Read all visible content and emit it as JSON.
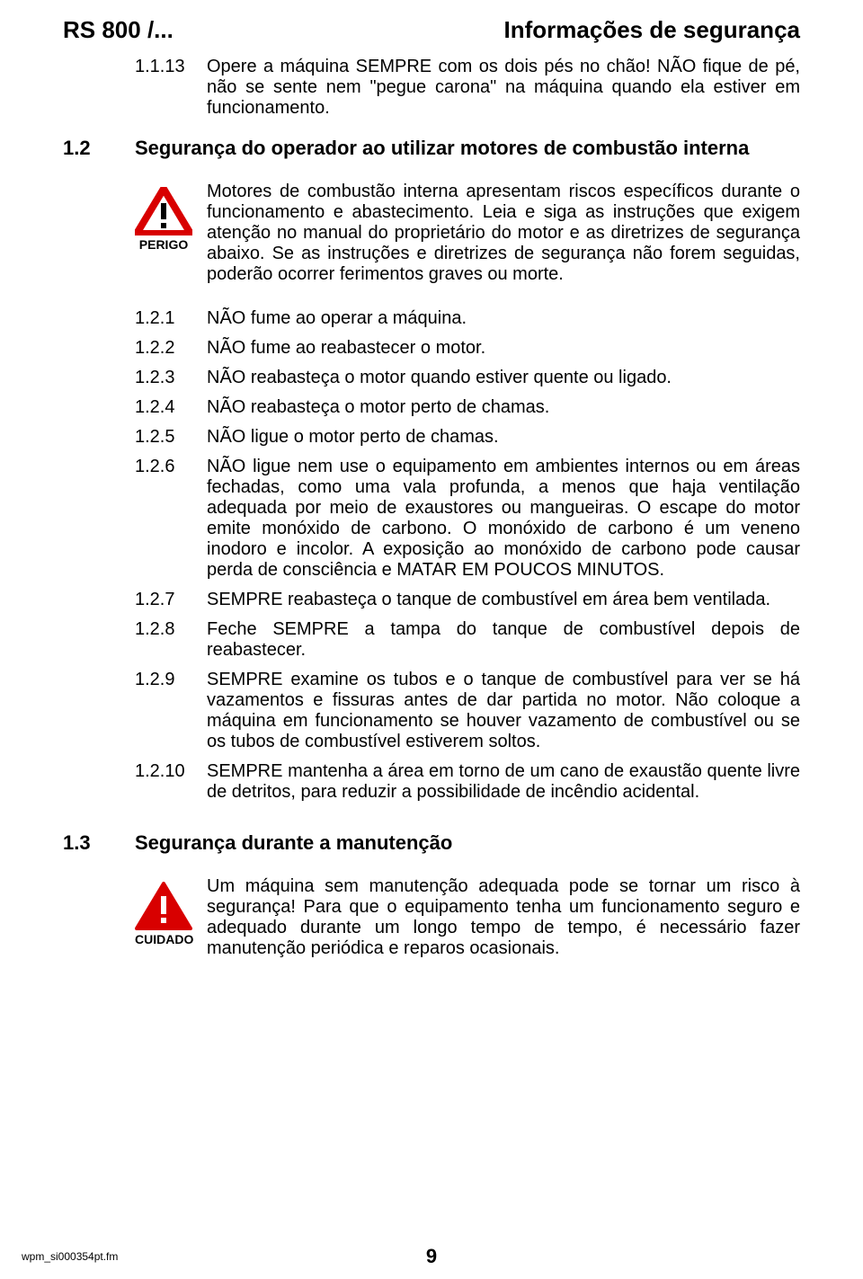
{
  "header": {
    "left": "RS 800 /...",
    "right": "Informações de segurança"
  },
  "intro_item": {
    "num": "1.1.13",
    "text": "Opere a máquina SEMPRE com os dois pés no chão! NÃO fique de pé, não se sente nem \"pegue carona\" na máquina quando ela estiver em funcionamento."
  },
  "section12": {
    "num": "1.2",
    "title": "Segurança do operador ao utilizar motores de combustão interna"
  },
  "warning12": {
    "label": "PERIGO",
    "text": "Motores de combustão interna apresentam riscos específicos durante o funcionamento e abastecimento. Leia e siga as instruções que exigem atenção no manual do proprietário do motor e as diretrizes de segurança abaixo. Se as instruções e diretrizes de segurança não forem seguidas, poderão ocorrer ferimentos graves ou morte."
  },
  "items12": [
    {
      "num": "1.2.1",
      "text": "NÃO fume ao operar a máquina."
    },
    {
      "num": "1.2.2",
      "text": "NÃO fume ao reabastecer o motor."
    },
    {
      "num": "1.2.3",
      "text": "NÃO reabasteça o motor quando estiver quente ou ligado."
    },
    {
      "num": "1.2.4",
      "text": "NÃO reabasteça o motor perto de chamas."
    },
    {
      "num": "1.2.5",
      "text": "NÃO ligue o motor perto de chamas."
    },
    {
      "num": "1.2.6",
      "text": "NÃO ligue nem use o equipamento em ambientes internos ou em áreas fechadas, como uma vala profunda, a menos que haja ventilação adequada por meio de exaustores ou mangueiras. O escape do motor emite monóxido de carbono. O monóxido de carbono é um veneno inodoro e incolor. A exposição ao monóxido de carbono pode causar perda de consciência e MATAR EM POUCOS MINUTOS."
    },
    {
      "num": "1.2.7",
      "text": "SEMPRE reabasteça o tanque de combustível em área bem ventilada."
    },
    {
      "num": "1.2.8",
      "text": "Feche SEMPRE a tampa do tanque de combustível depois de reabastecer."
    },
    {
      "num": "1.2.9",
      "text": "SEMPRE examine os tubos e o tanque de combustível para ver se há vazamentos e fissuras antes de dar partida no motor. Não coloque a máquina em funcionamento se houver vazamento de combustível ou se os tubos de combustível estiverem soltos."
    },
    {
      "num": "1.2.10",
      "text": "SEMPRE mantenha a área em torno de um cano de exaustão quente livre de detritos, para reduzir a possibilidade de incêndio acidental."
    }
  ],
  "section13": {
    "num": "1.3",
    "title": "Segurança durante a manutenção"
  },
  "warning13": {
    "label": "CUIDADO",
    "text": "Um máquina sem manutenção adequada pode se tornar um risco à segurança! Para que o equipamento tenha um funcionamento seguro e adequado durante um longo tempo de tempo, é necessário fazer manutenção periódica e reparos ocasionais."
  },
  "footer": {
    "left": "wpm_si000354pt.fm",
    "page": "9"
  },
  "colors": {
    "warning_red": "#d80000",
    "text": "#000000",
    "bg": "#ffffff"
  }
}
